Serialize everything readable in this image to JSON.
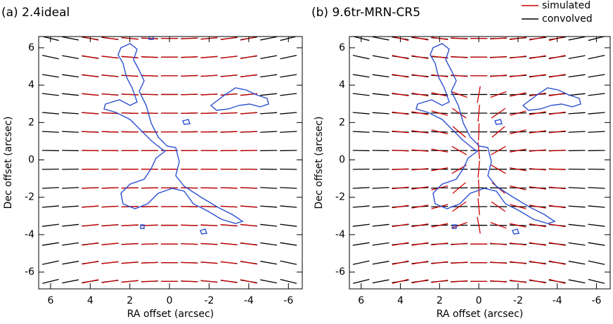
{
  "chart_data": [
    {
      "type": "vector",
      "title": "(a) 2.4ideal",
      "xlabel": "RA offset (arcsec)",
      "ylabel": "Dec offset (arcsec)",
      "xlim": [
        6.6,
        -6.7
      ],
      "ylim": [
        -6.9,
        6.6
      ],
      "xticks": [
        6,
        4,
        2,
        0,
        -2,
        -4,
        -6
      ],
      "yticks": [
        6,
        4,
        2,
        0,
        -2,
        -4,
        -6
      ],
      "y": [
        6.5,
        5.5,
        4.5,
        3.5,
        2.5,
        1.5,
        0.5,
        -0.5,
        -1.5,
        -2.5,
        -3.5,
        -4.5,
        -5.5,
        -6.5
      ],
      "series": [
        {
          "name": "convolved",
          "color": "#000000",
          "x": [
            6,
            5,
            4,
            3,
            2,
            1,
            0,
            -1,
            -2,
            -3,
            -4,
            -5,
            -6
          ],
          "angles": [
            [
              -14,
              -11,
              -9,
              -7,
              -5,
              -2,
              0,
              2,
              5,
              7,
              9,
              11,
              14
            ],
            [
              -12,
              -10,
              -8,
              -6,
              -4,
              -2,
              0,
              2,
              4,
              6,
              8,
              10,
              12
            ],
            [
              -9,
              -8,
              -6,
              -5,
              -3,
              -2,
              0,
              2,
              3,
              5,
              6,
              8,
              9
            ],
            [
              -7,
              -6,
              -5,
              -4,
              -2,
              -1,
              0,
              1,
              2,
              4,
              5,
              6,
              7
            ],
            [
              -5,
              -4,
              -4,
              -3,
              -2,
              -1,
              0,
              1,
              2,
              3,
              4,
              4,
              5
            ],
            [
              -3,
              -3,
              -2,
              -2,
              -1,
              -1,
              0,
              1,
              1,
              2,
              2,
              3,
              3
            ],
            [
              -1,
              -1,
              -1,
              -1,
              0,
              0,
              0,
              0,
              0,
              1,
              1,
              1,
              1
            ],
            [
              1,
              1,
              1,
              1,
              0,
              0,
              0,
              0,
              0,
              -1,
              -1,
              -1,
              -1
            ],
            [
              3,
              3,
              2,
              2,
              1,
              1,
              0,
              -1,
              -1,
              -2,
              -2,
              -3,
              -3
            ],
            [
              5,
              4,
              4,
              3,
              2,
              1,
              0,
              -1,
              -2,
              -3,
              -4,
              -4,
              -5
            ],
            [
              7,
              6,
              5,
              4,
              2,
              1,
              0,
              -1,
              -2,
              -4,
              -5,
              -6,
              -7
            ],
            [
              9,
              8,
              6,
              5,
              3,
              2,
              0,
              -2,
              -3,
              -5,
              -6,
              -8,
              -9
            ],
            [
              12,
              10,
              8,
              6,
              4,
              2,
              0,
              -2,
              -4,
              -6,
              -8,
              -10,
              -12
            ],
            [
              14,
              11,
              9,
              7,
              5,
              2,
              0,
              -2,
              -5,
              -7,
              -9,
              -11,
              -14
            ]
          ]
        },
        {
          "name": "simulated",
          "color": "#cc0000",
          "x": [
            4,
            3,
            2,
            1,
            0,
            -1,
            -2,
            -3,
            -4
          ],
          "angles": [
            [
              -12,
              -9,
              -6,
              -3,
              0,
              3,
              6,
              9,
              12
            ],
            [
              -10,
              -7,
              -5,
              -2,
              0,
              2,
              5,
              7,
              10
            ],
            [
              -8,
              -6,
              -4,
              -2,
              0,
              2,
              4,
              6,
              8
            ],
            [
              -6,
              -5,
              -3,
              -2,
              0,
              2,
              3,
              5,
              6
            ],
            [
              -5,
              -3,
              -2,
              -1,
              0,
              1,
              2,
              3,
              5
            ],
            [
              -3,
              -2,
              -1,
              -1,
              0,
              1,
              1,
              2,
              3
            ],
            [
              -1,
              -1,
              0,
              0,
              0,
              0,
              0,
              1,
              1
            ],
            [
              1,
              1,
              0,
              0,
              0,
              0,
              0,
              -1,
              -1
            ],
            [
              3,
              2,
              1,
              1,
              0,
              -1,
              -1,
              -2,
              -3
            ],
            [
              5,
              3,
              2,
              1,
              0,
              -1,
              -2,
              -3,
              -5
            ],
            [
              6,
              5,
              3,
              2,
              0,
              -2,
              -3,
              -5,
              -6
            ],
            [
              8,
              6,
              4,
              2,
              0,
              -2,
              -4,
              -6,
              -8
            ],
            [
              10,
              7,
              5,
              2,
              0,
              -2,
              -5,
              -7,
              -10
            ],
            [
              12,
              9,
              6,
              3,
              0,
              -3,
              -6,
              -9,
              -12
            ]
          ]
        }
      ]
    },
    {
      "type": "vector",
      "title": "(b) 9.6tr-MRN-CR5",
      "xlabel": "RA offset (arcsec)",
      "ylabel": "Dec offset (arcsec)",
      "xlim": [
        6.6,
        -6.7
      ],
      "ylim": [
        -6.9,
        6.6
      ],
      "xticks": [
        6,
        4,
        2,
        0,
        -2,
        -4,
        -6
      ],
      "yticks": [
        6,
        4,
        2,
        0,
        -2,
        -4,
        -6
      ],
      "y": [
        6.5,
        5.5,
        4.5,
        3.5,
        2.5,
        1.5,
        0.5,
        -0.5,
        -1.5,
        -2.5,
        -3.5,
        -4.5,
        -5.5,
        -6.5
      ],
      "series": [
        {
          "name": "convolved",
          "color": "#000000",
          "x": [
            6,
            5,
            4,
            3,
            2,
            1,
            0,
            -1,
            -2,
            -3,
            -4,
            -5,
            -6
          ],
          "angles": [
            [
              -14,
              -11,
              -9,
              -7,
              -5,
              -2,
              0,
              2,
              5,
              7,
              9,
              11,
              14
            ],
            [
              -12,
              -10,
              -8,
              -6,
              -4,
              -2,
              0,
              2,
              4,
              6,
              8,
              10,
              12
            ],
            [
              -9,
              -8,
              -6,
              -5,
              -3,
              -2,
              0,
              2,
              3,
              5,
              6,
              8,
              9
            ],
            [
              -7,
              -6,
              -5,
              -4,
              -2,
              -1,
              0,
              1,
              2,
              4,
              5,
              6,
              7
            ],
            [
              -5,
              -4,
              -4,
              -3,
              -2,
              -1,
              0,
              1,
              2,
              3,
              4,
              4,
              5
            ],
            [
              -3,
              -3,
              -2,
              -2,
              -1,
              -1,
              0,
              1,
              1,
              2,
              2,
              3,
              3
            ],
            [
              -1,
              -1,
              -1,
              -1,
              0,
              0,
              0,
              0,
              0,
              1,
              1,
              1,
              1
            ],
            [
              1,
              1,
              1,
              1,
              0,
              0,
              0,
              0,
              0,
              -1,
              -1,
              -1,
              -1
            ],
            [
              3,
              3,
              2,
              2,
              1,
              1,
              0,
              -1,
              -1,
              -2,
              -2,
              -3,
              -3
            ],
            [
              5,
              4,
              4,
              3,
              2,
              1,
              0,
              -1,
              -2,
              -3,
              -4,
              -4,
              -5
            ],
            [
              7,
              6,
              5,
              4,
              2,
              1,
              0,
              -1,
              -2,
              -4,
              -5,
              -6,
              -7
            ],
            [
              9,
              8,
              6,
              5,
              3,
              2,
              0,
              -2,
              -3,
              -5,
              -6,
              -8,
              -9
            ],
            [
              12,
              10,
              8,
              6,
              4,
              2,
              0,
              -2,
              -4,
              -6,
              -8,
              -10,
              -12
            ],
            [
              14,
              11,
              9,
              7,
              5,
              2,
              0,
              -2,
              -5,
              -7,
              -9,
              -11,
              -14
            ]
          ]
        },
        {
          "name": "simulated",
          "color": "#cc0000",
          "x": [
            4,
            3,
            2,
            1,
            0,
            -1,
            -2,
            -3,
            -4
          ],
          "angles": [
            [
              -14,
              -11,
              -8,
              -4,
              0,
              4,
              8,
              11,
              14
            ],
            [
              -12,
              -10,
              -7,
              -4,
              0,
              4,
              7,
              10,
              12
            ],
            [
              -10,
              -9,
              -7,
              -5,
              0,
              5,
              7,
              9,
              10
            ],
            [
              -9,
              -10,
              -12,
              -20,
              80,
              20,
              12,
              10,
              9
            ],
            [
              -8,
              -10,
              -15,
              -35,
              85,
              35,
              15,
              10,
              8
            ],
            [
              -6,
              -8,
              -14,
              -40,
              88,
              40,
              14,
              8,
              6
            ],
            [
              -3,
              -5,
              -10,
              -30,
              -85,
              30,
              10,
              5,
              3
            ],
            [
              3,
              5,
              10,
              30,
              85,
              -30,
              -10,
              -5,
              -3
            ],
            [
              6,
              8,
              14,
              40,
              -88,
              -40,
              -14,
              -8,
              -6
            ],
            [
              8,
              10,
              15,
              35,
              -85,
              -35,
              -15,
              -10,
              -8
            ],
            [
              9,
              10,
              12,
              20,
              -80,
              -20,
              -12,
              -10,
              -9
            ],
            [
              10,
              9,
              7,
              5,
              0,
              -5,
              -7,
              -9,
              -10
            ],
            [
              12,
              10,
              7,
              4,
              0,
              -4,
              -7,
              -10,
              -12
            ],
            [
              14,
              11,
              8,
              4,
              0,
              -4,
              -8,
              -11,
              -14
            ]
          ]
        }
      ]
    }
  ]
}
